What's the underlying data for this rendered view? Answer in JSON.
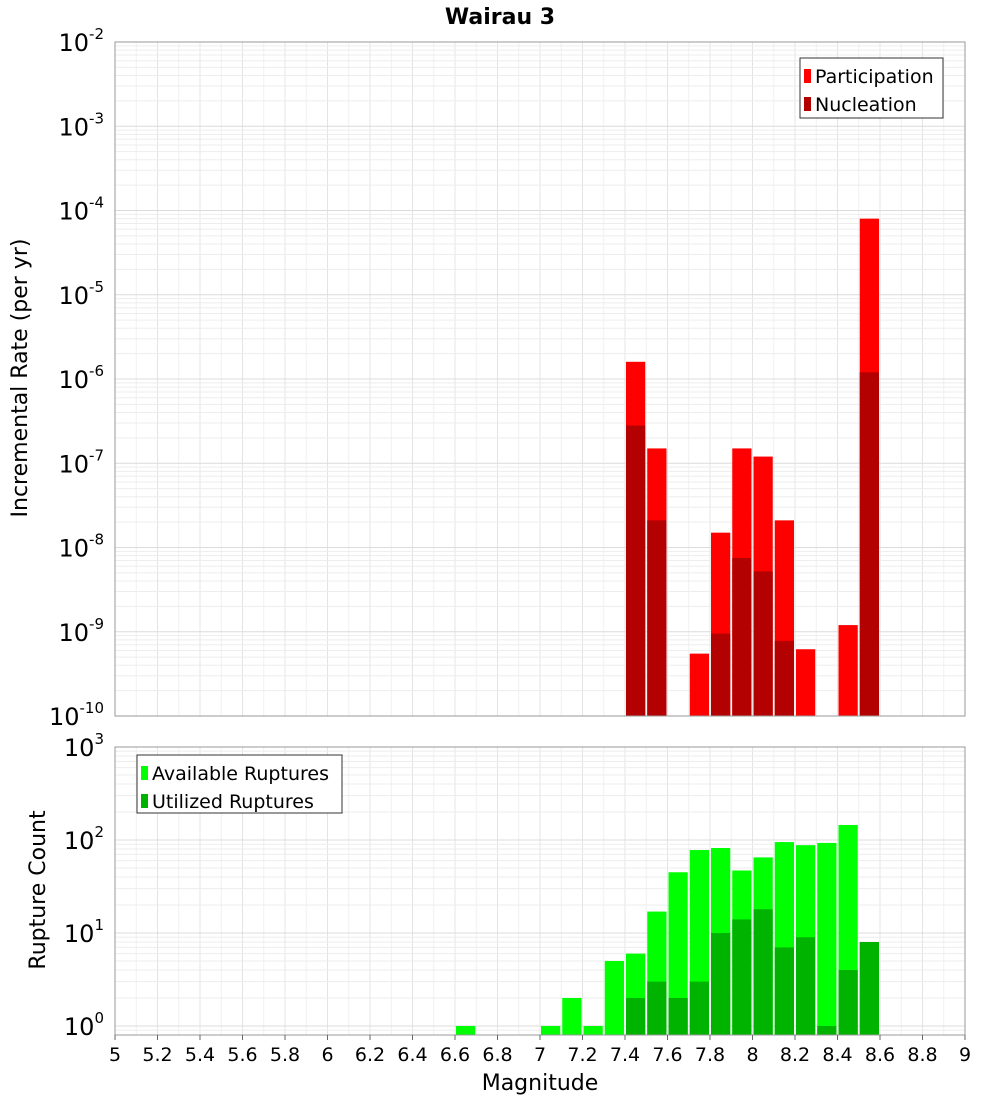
{
  "chart_data": [
    {
      "type": "bar",
      "title": "Wairau 3",
      "ylabel": "Incremental Rate (per yr)",
      "xlabel": "",
      "scale_y": "log",
      "ylim": [
        1e-10,
        0.01
      ],
      "xlim": [
        5,
        9
      ],
      "grid": true,
      "legend_position": "top-right",
      "y_tick_exponents": [
        "-10",
        "-9",
        "-8",
        "-7",
        "-6",
        "-5",
        "-4",
        "-3",
        "-2"
      ],
      "bin_width": 0.1,
      "series": [
        {
          "name": "Participation",
          "color": "#ff0000",
          "x": [
            7.45,
            7.55,
            7.75,
            7.85,
            7.95,
            8.05,
            8.15,
            8.25,
            8.45,
            8.55
          ],
          "values": [
            1.6e-06,
            1.5e-07,
            5.5e-10,
            1.5e-08,
            1.5e-07,
            1.2e-07,
            2.1e-08,
            6.2e-10,
            1.2e-09,
            8e-05
          ]
        },
        {
          "name": "Nucleation",
          "color": "#b30000",
          "x": [
            7.45,
            7.55,
            7.85,
            7.95,
            8.05,
            8.15,
            8.55
          ],
          "values": [
            2.8e-07,
            2.1e-08,
            9.5e-10,
            7.5e-09,
            5.2e-09,
            7.8e-10,
            1.2e-06
          ]
        }
      ]
    },
    {
      "type": "bar",
      "title": "",
      "ylabel": "Rupture Count",
      "xlabel": "Magnitude",
      "scale_y": "log",
      "ylim": [
        0.8,
        1000
      ],
      "xlim": [
        5,
        9
      ],
      "grid": true,
      "legend_position": "top-left",
      "x_ticks": [
        "5",
        "5.2",
        "5.4",
        "5.6",
        "5.8",
        "6",
        "6.2",
        "6.4",
        "6.6",
        "6.8",
        "7",
        "7.2",
        "7.4",
        "7.6",
        "7.8",
        "8",
        "8.2",
        "8.4",
        "8.6",
        "8.8",
        "9"
      ],
      "y_tick_exponents": [
        "0",
        "1",
        "2",
        "3"
      ],
      "bin_width": 0.1,
      "series": [
        {
          "name": "Available Ruptures",
          "color": "#00ff00",
          "x": [
            6.65,
            7.05,
            7.15,
            7.25,
            7.35,
            7.45,
            7.55,
            7.65,
            7.75,
            7.85,
            7.95,
            8.05,
            8.15,
            8.25,
            8.35,
            8.45,
            8.55
          ],
          "values": [
            1,
            1,
            2,
            1,
            5,
            6,
            17,
            45,
            78,
            82,
            47,
            65,
            95,
            88,
            93,
            145,
            8
          ]
        },
        {
          "name": "Utilized Ruptures",
          "color": "#00b300",
          "x": [
            7.45,
            7.55,
            7.65,
            7.75,
            7.85,
            7.95,
            8.05,
            8.15,
            8.25,
            8.35,
            8.45,
            8.55
          ],
          "values": [
            2,
            3,
            2,
            3,
            10,
            14,
            18,
            7,
            9,
            1,
            4,
            8
          ]
        }
      ]
    }
  ]
}
